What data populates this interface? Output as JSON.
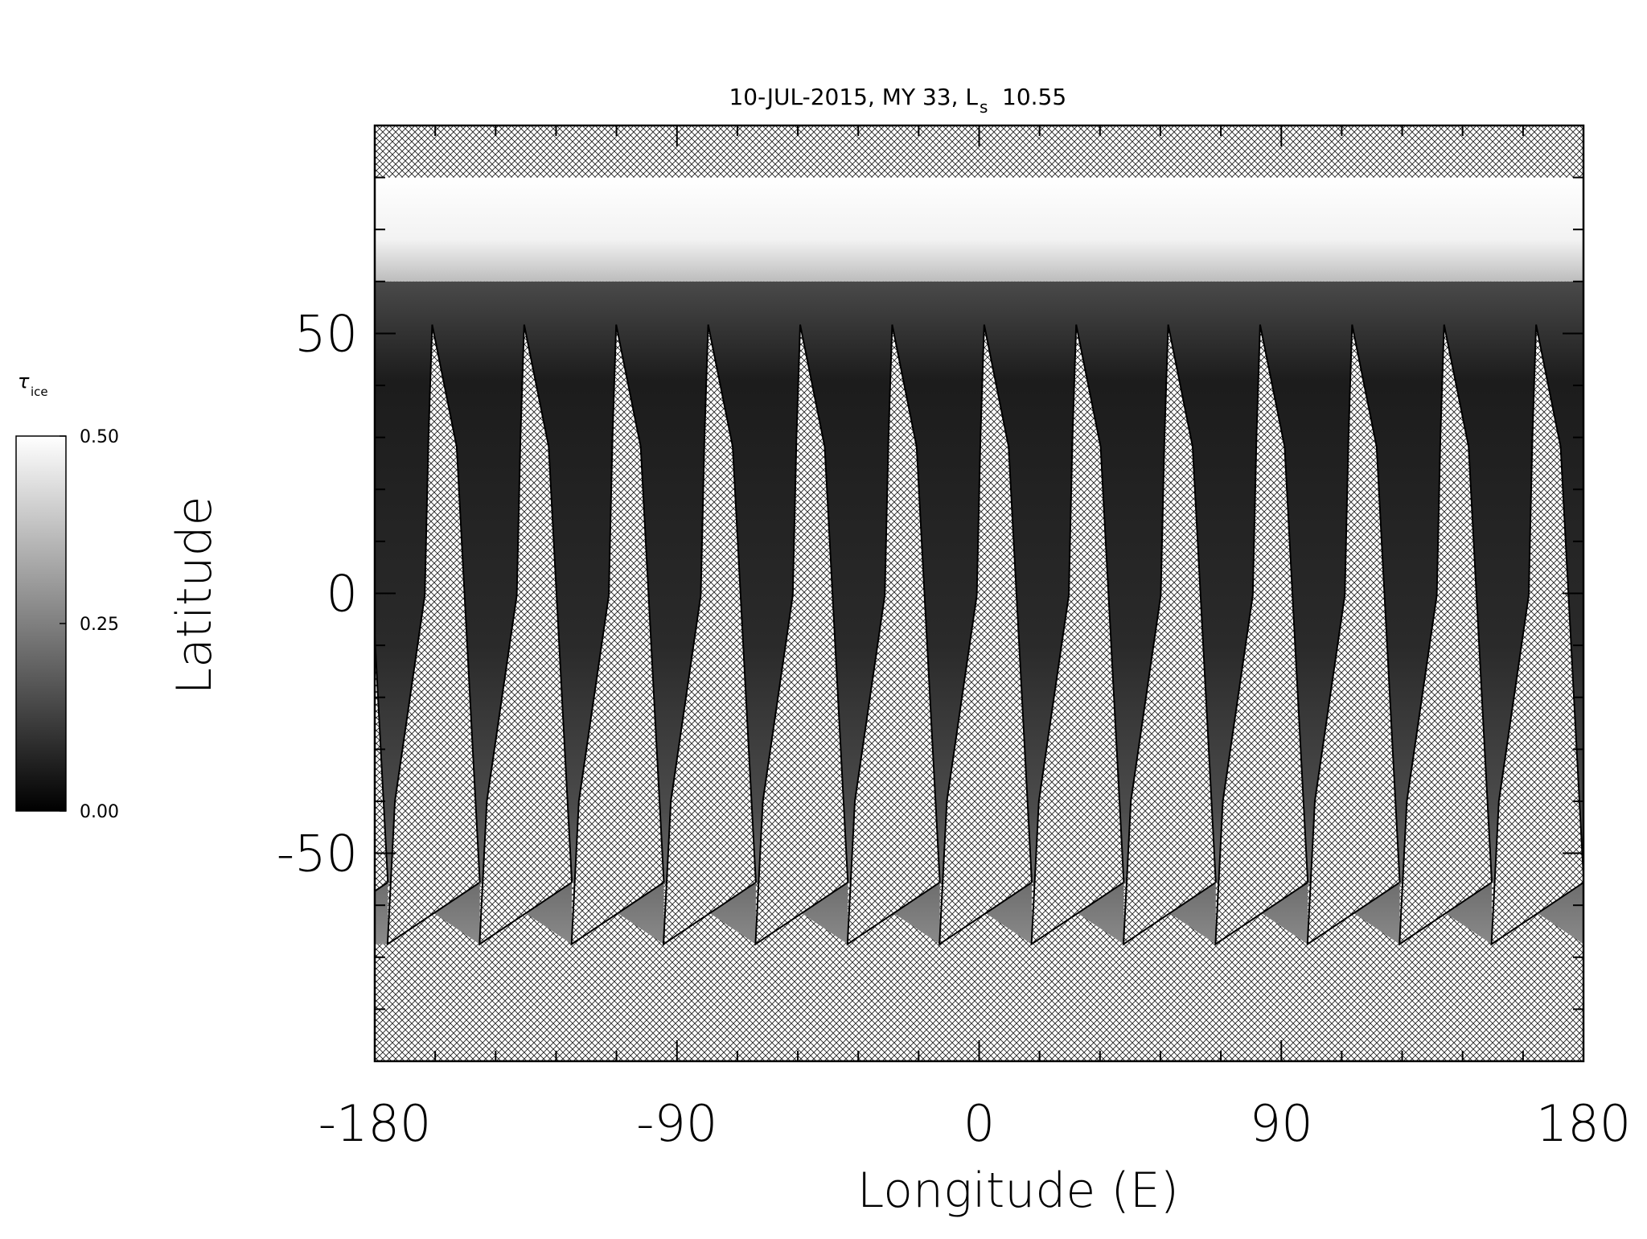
{
  "chart_data": {
    "type": "map",
    "title": "10-JUL-2015, MY 33,  L",
    "title_subscript": "s",
    "title_suffix": "10.55",
    "xlabel": "Longitude (E)",
    "ylabel": "Latitude",
    "xlim": [
      -180,
      180
    ],
    "xticks": [
      -180,
      -90,
      0,
      90,
      180
    ],
    "xminorticks": [
      -162,
      -144,
      -126,
      -108,
      -72,
      -54,
      -36,
      -18,
      18,
      36,
      54,
      72,
      108,
      126,
      144,
      162
    ],
    "ylim": [
      -90,
      90
    ],
    "yticks": [
      -50,
      0,
      50
    ],
    "yminorticks": [
      -80,
      -70,
      -60,
      -40,
      -30,
      -20,
      -10,
      10,
      20,
      30,
      40,
      60,
      70,
      80
    ],
    "colorbar": {
      "label": "τ",
      "label_subscript": "ice",
      "lim": [
        0,
        0.5
      ],
      "ticks": [
        {
          "value": 0,
          "label": "0.00"
        },
        {
          "value": 0.25,
          "label": "0.25"
        },
        {
          "value": 0.5,
          "label": "0.50"
        }
      ],
      "colors": [
        "#000000",
        "#ffffff"
      ]
    }
  }
}
